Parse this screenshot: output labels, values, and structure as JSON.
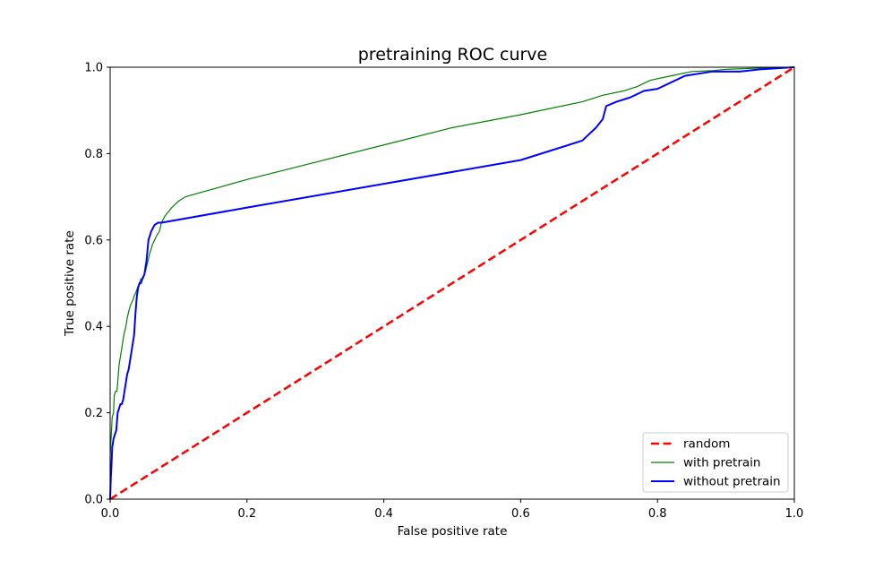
{
  "chart_data": {
    "type": "line",
    "title": "pretraining ROC curve",
    "xlabel": "False positive rate",
    "ylabel": "True positive rate",
    "xlim": [
      0.0,
      1.0
    ],
    "ylim": [
      0.0,
      1.0
    ],
    "xticks": [
      "0.0",
      "0.2",
      "0.4",
      "0.6",
      "0.8",
      "1.0"
    ],
    "yticks": [
      "0.0",
      "0.2",
      "0.4",
      "0.6",
      "0.8",
      "1.0"
    ],
    "grid": false,
    "legend_position": "bottom-right",
    "series": [
      {
        "name": "random",
        "color": "#ff0000",
        "style": "dashed",
        "x": [
          0.0,
          1.0
        ],
        "y": [
          0.0,
          1.0
        ]
      },
      {
        "name": "with pretrain",
        "color": "#008000",
        "style": "solid-thin",
        "x": [
          0.0,
          0.0,
          0.002,
          0.003,
          0.005,
          0.006,
          0.008,
          0.01,
          0.012,
          0.013,
          0.015,
          0.018,
          0.02,
          0.023,
          0.025,
          0.028,
          0.03,
          0.033,
          0.035,
          0.038,
          0.04,
          0.045,
          0.048,
          0.052,
          0.055,
          0.058,
          0.062,
          0.065,
          0.068,
          0.072,
          0.075,
          0.08,
          0.085,
          0.09,
          0.1,
          0.11,
          0.2,
          0.3,
          0.4,
          0.5,
          0.6,
          0.69,
          0.72,
          0.75,
          0.77,
          0.79,
          0.82,
          0.85,
          0.88,
          0.9,
          0.95,
          1.0
        ],
        "y": [
          0.0,
          0.1,
          0.16,
          0.19,
          0.2,
          0.24,
          0.25,
          0.25,
          0.29,
          0.31,
          0.33,
          0.36,
          0.38,
          0.4,
          0.42,
          0.44,
          0.45,
          0.46,
          0.47,
          0.48,
          0.49,
          0.51,
          0.51,
          0.53,
          0.55,
          0.57,
          0.59,
          0.6,
          0.61,
          0.62,
          0.64,
          0.655,
          0.665,
          0.675,
          0.69,
          0.7,
          0.74,
          0.78,
          0.82,
          0.86,
          0.89,
          0.92,
          0.935,
          0.945,
          0.955,
          0.97,
          0.98,
          0.99,
          0.992,
          0.995,
          0.998,
          1.0
        ]
      },
      {
        "name": "without pretrain",
        "color": "#0000ff",
        "style": "solid",
        "x": [
          0.0,
          0.001,
          0.002,
          0.003,
          0.005,
          0.007,
          0.009,
          0.011,
          0.013,
          0.015,
          0.017,
          0.019,
          0.021,
          0.023,
          0.025,
          0.027,
          0.029,
          0.031,
          0.033,
          0.035,
          0.037,
          0.039,
          0.041,
          0.043,
          0.045,
          0.047,
          0.05,
          0.053,
          0.056,
          0.06,
          0.065,
          0.07,
          0.075,
          0.2,
          0.4,
          0.6,
          0.69,
          0.71,
          0.72,
          0.725,
          0.74,
          0.76,
          0.78,
          0.8,
          0.84,
          0.88,
          0.92,
          0.95,
          1.0
        ],
        "y": [
          0.0,
          0.05,
          0.08,
          0.12,
          0.14,
          0.15,
          0.16,
          0.2,
          0.21,
          0.22,
          0.22,
          0.23,
          0.25,
          0.27,
          0.29,
          0.3,
          0.32,
          0.34,
          0.36,
          0.38,
          0.43,
          0.47,
          0.49,
          0.5,
          0.5,
          0.51,
          0.52,
          0.55,
          0.6,
          0.62,
          0.635,
          0.64,
          0.64,
          0.675,
          0.73,
          0.785,
          0.83,
          0.86,
          0.88,
          0.91,
          0.92,
          0.93,
          0.945,
          0.95,
          0.98,
          0.99,
          0.99,
          0.995,
          1.0
        ]
      }
    ]
  }
}
